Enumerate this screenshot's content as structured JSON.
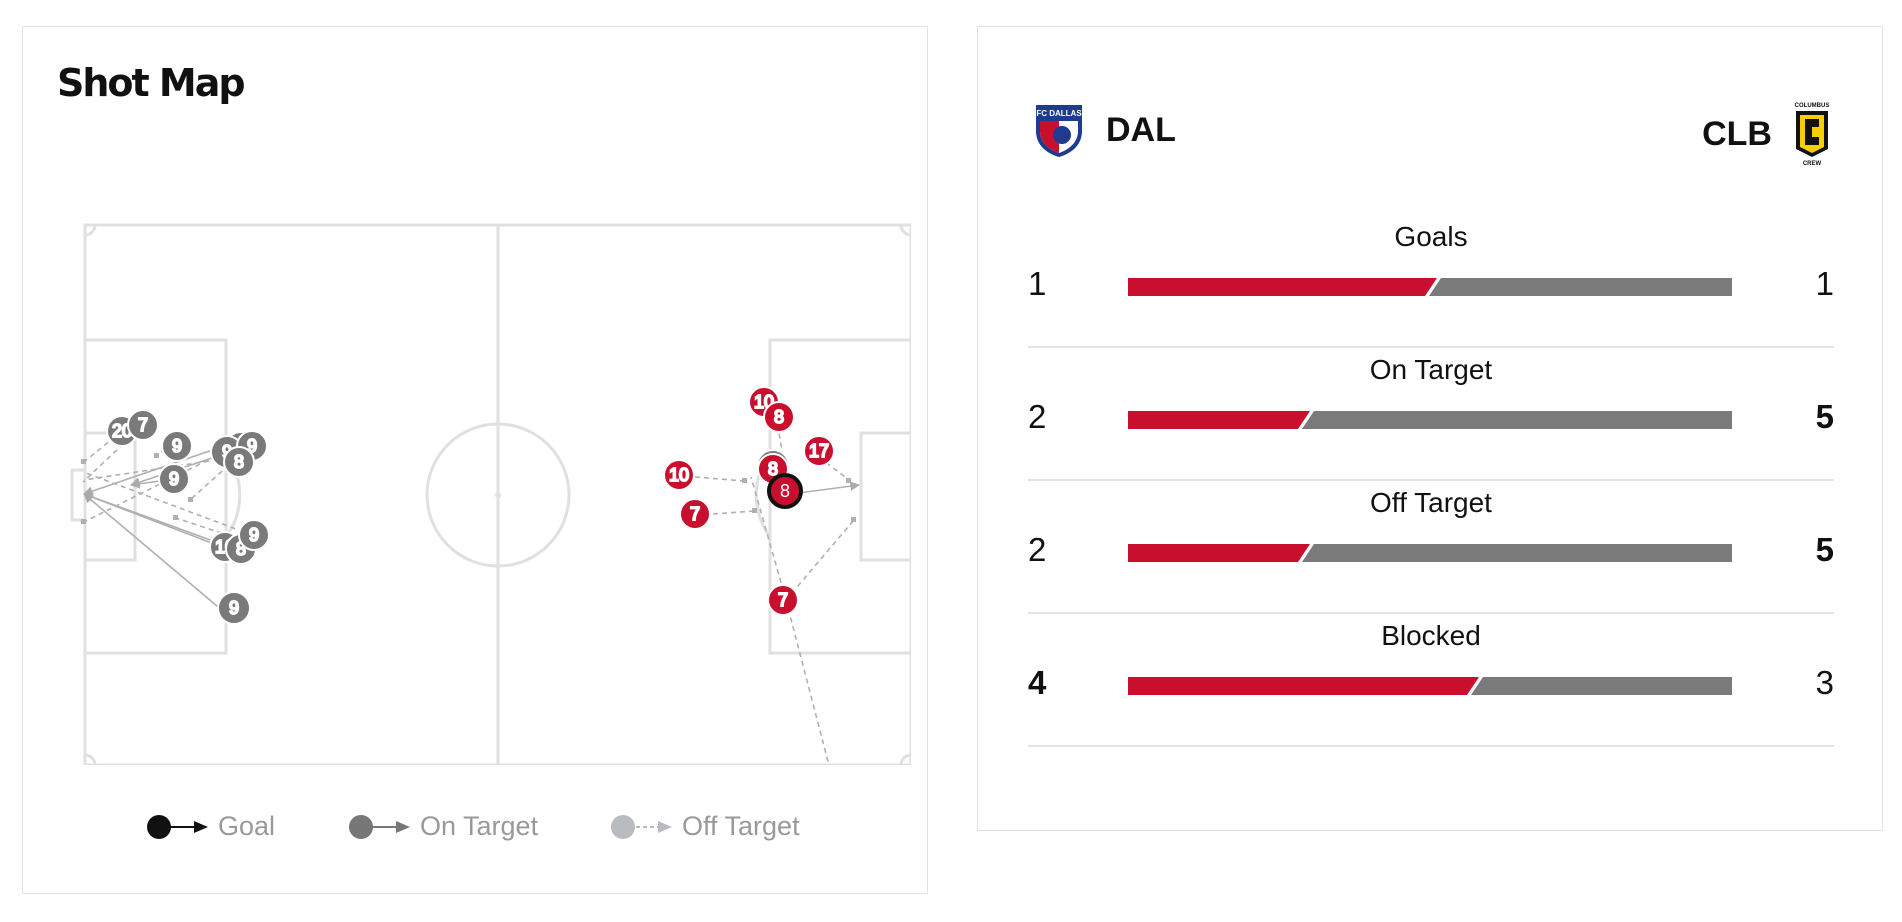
{
  "shot_map": {
    "title": "Shot Map",
    "legend": {
      "goal": "Goal",
      "on_target": "On Target",
      "off_target": "Off Target"
    }
  },
  "comparison": {
    "home": {
      "abbr": "DAL",
      "color": "#c8102e",
      "logo_text": "FC DALLAS"
    },
    "away": {
      "abbr": "CLB",
      "color": "#7a7a7a",
      "logo_text": "COLUMBUS CREW"
    },
    "stats": [
      {
        "label": "Goals",
        "home": "1",
        "away": "1",
        "home_share": 0.5,
        "bold": "none"
      },
      {
        "label": "On Target",
        "home": "2",
        "away": "5",
        "home_share": 0.29,
        "bold": "away"
      },
      {
        "label": "Off Target",
        "home": "2",
        "away": "5",
        "home_share": 0.29,
        "bold": "away"
      },
      {
        "label": "Blocked",
        "home": "4",
        "away": "3",
        "home_share": 0.57,
        "bold": "home"
      }
    ]
  },
  "colors": {
    "home_shot": "#c8102e",
    "away_shot": "#7a7a7a",
    "goal_ring": "#111111",
    "pitch_line": "#e0e0e0",
    "trajectory": "#b0b0b0"
  }
}
